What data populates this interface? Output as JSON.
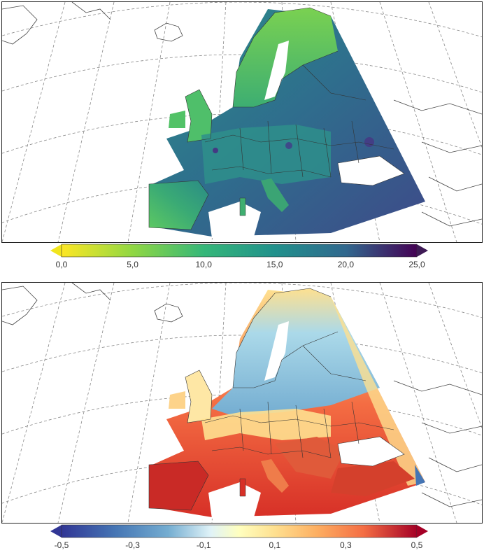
{
  "top_map": {
    "title": "",
    "colorbar": {
      "palette": "viridis-reversed",
      "ticks": [
        "0,0",
        "5,0",
        "10,0",
        "15,0",
        "20,0",
        "25,0"
      ],
      "min": 0,
      "max": 25,
      "extend_low_color": "#f1e51d",
      "extend_high_color": "#3e1a55"
    }
  },
  "bottom_map": {
    "title": "",
    "colorbar": {
      "palette": "RdYlBu-reversed",
      "ticks": [
        "-0,5",
        "-0,3",
        "-0,1",
        "0,1",
        "0,3",
        "0,5"
      ],
      "min": -0.5,
      "max": 0.5,
      "extend_low_color": "#313695",
      "extend_high_color": "#a50026"
    }
  },
  "colors": {
    "graticule": "#888888",
    "coastline": "#333333",
    "frame": "#222222"
  }
}
